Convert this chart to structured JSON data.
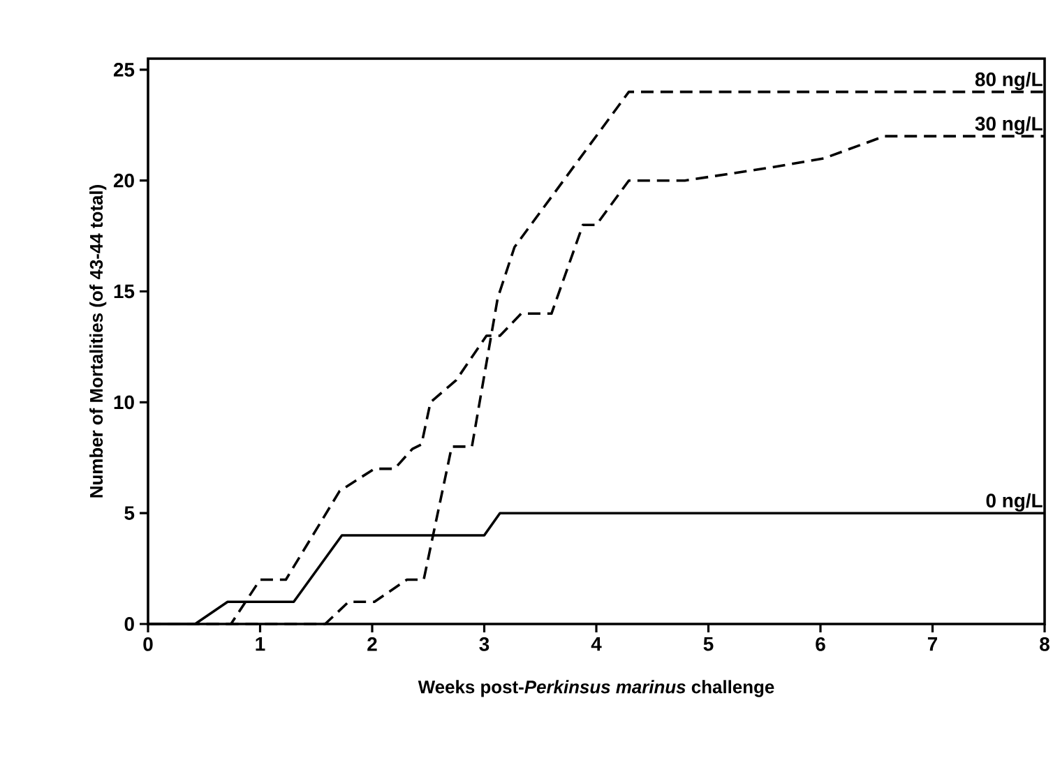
{
  "chart_data": {
    "type": "line",
    "xlabel": "Weeks post-*Perkinsus marinus* challenge",
    "ylabel": "Number of Mortalities (of 43-44 total)",
    "xlim": [
      0,
      8
    ],
    "ylim": [
      0,
      25.5
    ],
    "xticks": [
      0,
      1,
      2,
      3,
      4,
      5,
      6,
      7,
      8
    ],
    "yticks": [
      0,
      5,
      10,
      15,
      20,
      25
    ],
    "grid": false,
    "legend": false,
    "marker": "none",
    "series": [
      {
        "name": "80 ng/L",
        "color": "#000000",
        "line_style": "dashed",
        "x": [
          0,
          1.58,
          1.79,
          2.02,
          2.31,
          2.46,
          2.71,
          2.89,
          3.12,
          3.27,
          4.29,
          8
        ],
        "values": [
          0,
          0,
          1,
          1,
          2,
          2,
          8,
          8,
          14.7,
          17,
          24,
          24
        ]
      },
      {
        "name": "30 ng/L",
        "color": "#000000",
        "line_style": "dashed",
        "x": [
          0,
          0.74,
          1.0,
          1.23,
          1.71,
          2.02,
          2.2,
          2.36,
          2.44,
          2.52,
          2.75,
          3.02,
          3.14,
          3.33,
          3.6,
          3.88,
          4.0,
          4.29,
          4.79,
          5.57,
          6.03,
          6.57,
          8
        ],
        "values": [
          0,
          0,
          2,
          2,
          6,
          7,
          7,
          7.9,
          8.1,
          10,
          11,
          13,
          13,
          14,
          14,
          18,
          18,
          20,
          20,
          20.6,
          21,
          22,
          22
        ]
      },
      {
        "name": "0 ng/L",
        "color": "#000000",
        "line_style": "solid",
        "x": [
          0,
          0.42,
          0.71,
          1.3,
          1.73,
          3.0,
          3.14,
          8
        ],
        "values": [
          0,
          0,
          1,
          1,
          4,
          4,
          5,
          5
        ]
      }
    ]
  }
}
